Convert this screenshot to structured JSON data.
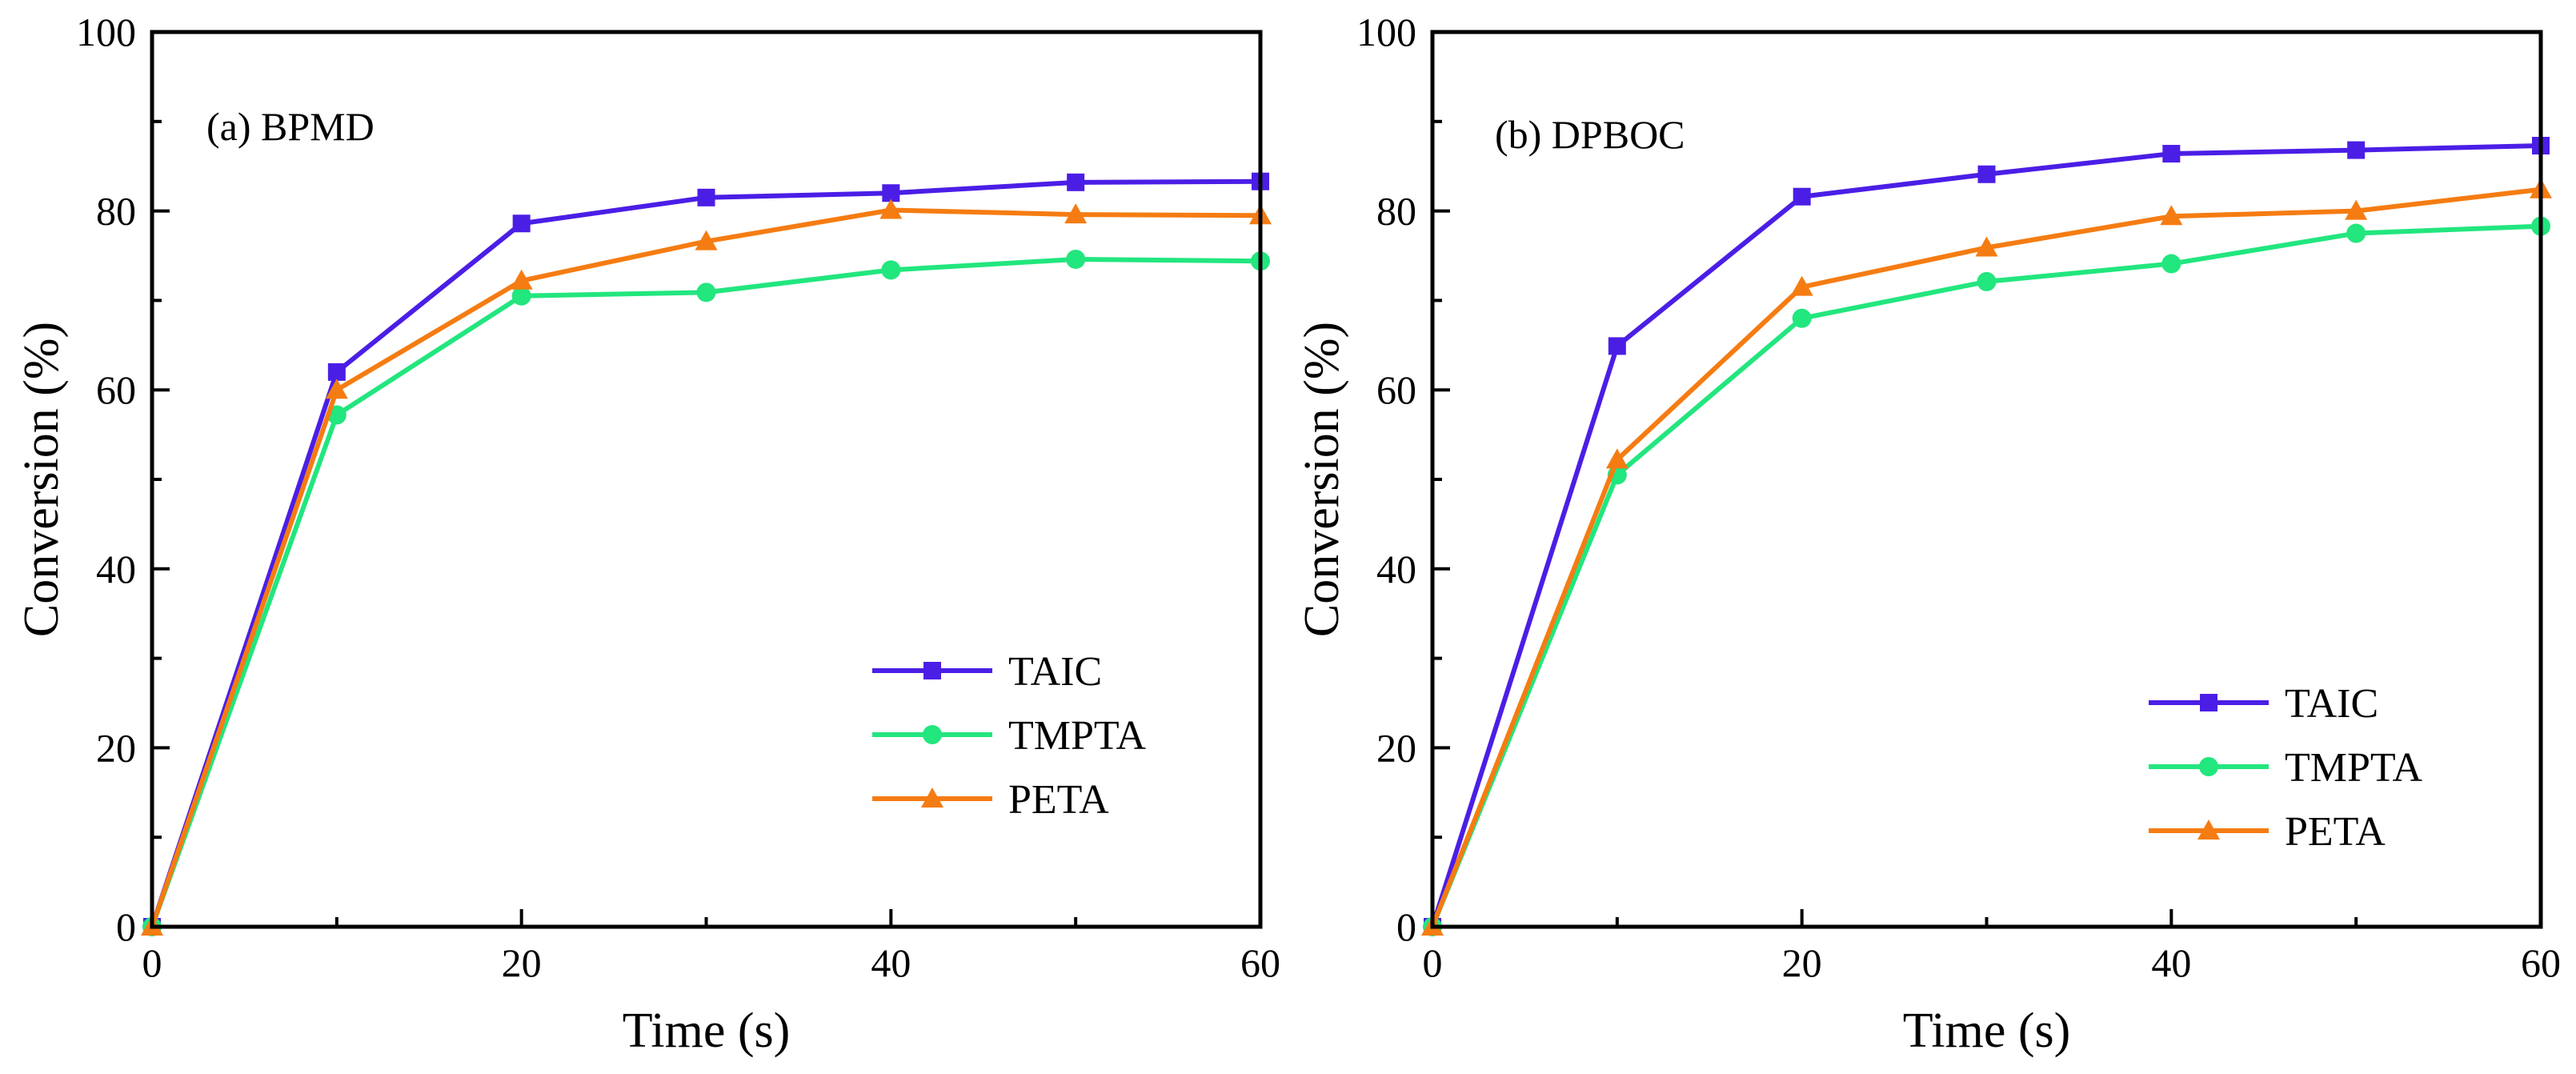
{
  "chart_data": [
    {
      "type": "line",
      "title": "(a) BPMD",
      "xlabel": "Time (s)",
      "ylabel": "Conversion (%)",
      "xlim": [
        0,
        60
      ],
      "ylim": [
        0,
        100
      ],
      "xticks": [
        0,
        20,
        40,
        60
      ],
      "yticks": [
        0,
        20,
        40,
        60,
        80,
        100
      ],
      "legend_position": "bottom-right",
      "x": [
        0,
        10,
        20,
        30,
        40,
        50,
        60
      ],
      "series": [
        {
          "name": "TAIC",
          "color": "#4b1ee6",
          "marker": "square",
          "values": [
            0,
            62.0,
            78.6,
            81.5,
            82.0,
            83.2,
            83.3
          ]
        },
        {
          "name": "TMPTA",
          "color": "#22e67e",
          "marker": "circle",
          "values": [
            0,
            57.2,
            70.5,
            70.9,
            73.4,
            74.6,
            74.4
          ]
        },
        {
          "name": "PETA",
          "color": "#f57c12",
          "marker": "triangle",
          "values": [
            0,
            60.0,
            72.2,
            76.6,
            80.1,
            79.6,
            79.5
          ]
        }
      ]
    },
    {
      "type": "line",
      "title": "(b) DPBOC",
      "xlabel": "Time (s)",
      "ylabel": "Conversion (%)",
      "xlim": [
        0,
        60
      ],
      "ylim": [
        0,
        100
      ],
      "xticks": [
        0,
        20,
        40,
        60
      ],
      "yticks": [
        0,
        20,
        40,
        60,
        80,
        100
      ],
      "legend_position": "bottom-right",
      "x": [
        0,
        10,
        20,
        30,
        40,
        50,
        60
      ],
      "series": [
        {
          "name": "TAIC",
          "color": "#4b1ee6",
          "marker": "square",
          "values": [
            0,
            64.9,
            81.6,
            84.1,
            86.4,
            86.8,
            87.3
          ]
        },
        {
          "name": "TMPTA",
          "color": "#22e67e",
          "marker": "circle",
          "values": [
            0,
            50.5,
            68.0,
            72.1,
            74.1,
            77.5,
            78.3
          ]
        },
        {
          "name": "PETA",
          "color": "#f57c12",
          "marker": "triangle",
          "values": [
            0,
            52.2,
            71.5,
            75.9,
            79.4,
            80.0,
            82.4
          ]
        }
      ]
    }
  ]
}
